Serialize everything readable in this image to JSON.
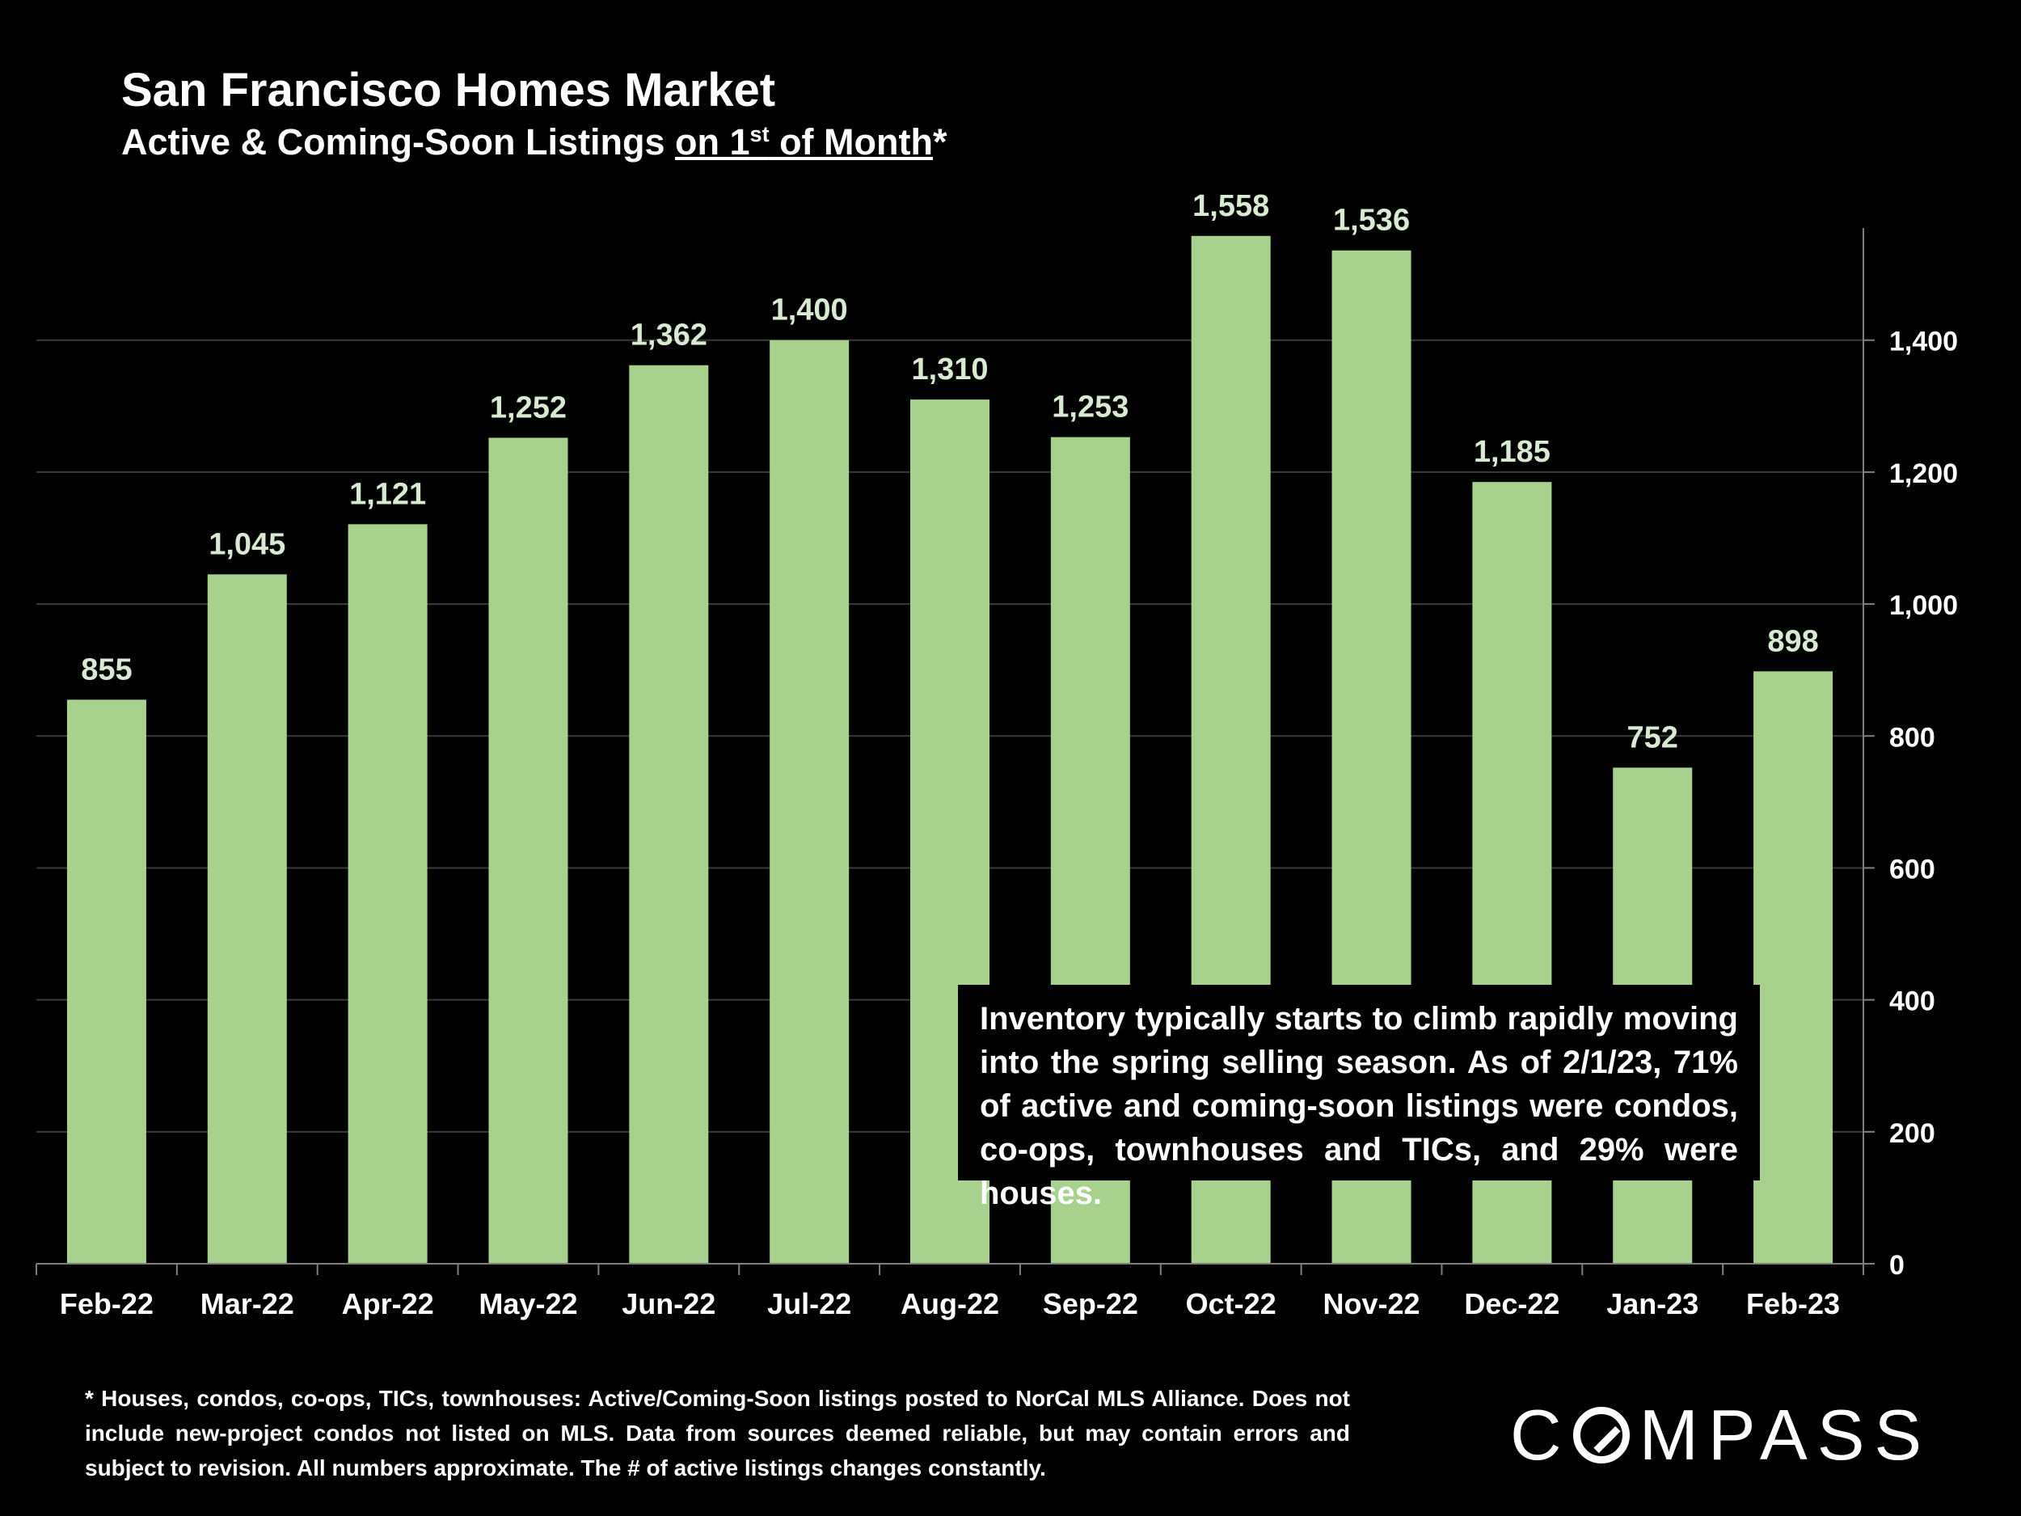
{
  "header": {
    "title": "San Francisco Homes Market",
    "subtitle_prefix": "Active & Coming-Soon Listings ",
    "subtitle_underlined_pre": "on 1",
    "subtitle_sup": "st",
    "subtitle_underlined_post": " of Month",
    "subtitle_suffix": "*"
  },
  "chart_data": {
    "type": "bar",
    "title": "San Francisco Homes Market",
    "subtitle": "Active & Coming-Soon Listings on 1st of Month*",
    "categories": [
      "Feb-22",
      "Mar-22",
      "Apr-22",
      "May-22",
      "Jun-22",
      "Jul-22",
      "Aug-22",
      "Sep-22",
      "Oct-22",
      "Nov-22",
      "Dec-22",
      "Jan-23",
      "Feb-23"
    ],
    "values": [
      855,
      1045,
      1121,
      1252,
      1362,
      1400,
      1310,
      1253,
      1558,
      1536,
      1185,
      752,
      898
    ],
    "data_labels": [
      "855",
      "1,045",
      "1,121",
      "1,252",
      "1,362",
      "1,400",
      "1,310",
      "1,253",
      "1,558",
      "1,536",
      "1,185",
      "752",
      "898"
    ],
    "ylim": [
      0,
      1570
    ],
    "y_ticks": [
      0,
      200,
      400,
      600,
      800,
      1000,
      1200,
      1400
    ],
    "y_tick_labels": [
      "0",
      "200",
      "400",
      "600",
      "800",
      "1,000",
      "1,200",
      "1,400"
    ],
    "y_axis_side": "right",
    "grid": true,
    "legend": "none",
    "xlabel": "",
    "ylabel": ""
  },
  "colors": {
    "background": "#000000",
    "bar": "#a9d18e",
    "data_label": "#d9ead3",
    "gridline": "#3a3a3a",
    "axis": "#7f7f7f",
    "text": "#ffffff"
  },
  "annotation": {
    "text": "Inventory typically starts to climb rapidly moving into the spring selling season. As of 2/1/23, 71% of active and coming-soon listings were condos, co-ops, townhouses and TICs, and 29% were houses."
  },
  "footnote": {
    "text": "* Houses, condos, co-ops, TICs, townhouses: Active/Coming-Soon listings posted to NorCal MLS Alliance. Does not include new-project condos not listed on MLS. Data from sources deemed reliable, but may contain errors and subject to revision. All numbers approximate. The # of active listings changes constantly."
  },
  "logo": {
    "text": "COMPASS",
    "left": "C",
    "right": "MPASS"
  }
}
